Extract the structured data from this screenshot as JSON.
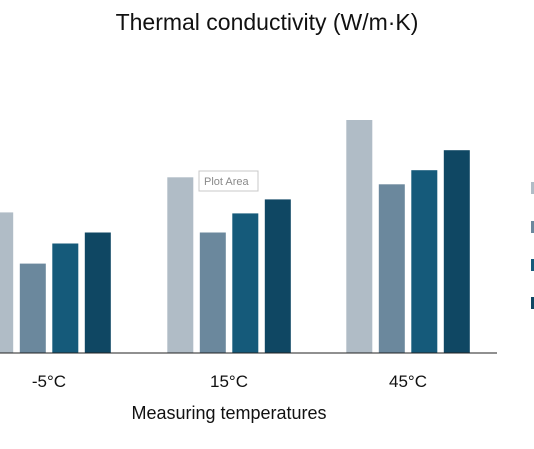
{
  "chart_data": {
    "type": "bar",
    "title": "Thermal conductivity (W/m·K)",
    "xlabel": "Measuring temperatures",
    "ylabel": "",
    "categories": [
      "-5°C",
      "15°C",
      "45°C"
    ],
    "ylim": [
      0,
      0.24
    ],
    "grid": false,
    "legend": "right",
    "series": [
      {
        "values": [
          0.14,
          0.175,
          0.232
        ],
        "color": "#b0bcc6"
      },
      {
        "values": [
          0.089,
          0.12,
          0.168
        ],
        "color": "#6b889d"
      },
      {
        "values": [
          0.109,
          0.139,
          0.182
        ],
        "color": "#155a7a"
      },
      {
        "values": [
          0.12,
          0.153,
          0.202
        ],
        "color": "#0f4763"
      }
    ],
    "tooltip": "Plot Area"
  }
}
